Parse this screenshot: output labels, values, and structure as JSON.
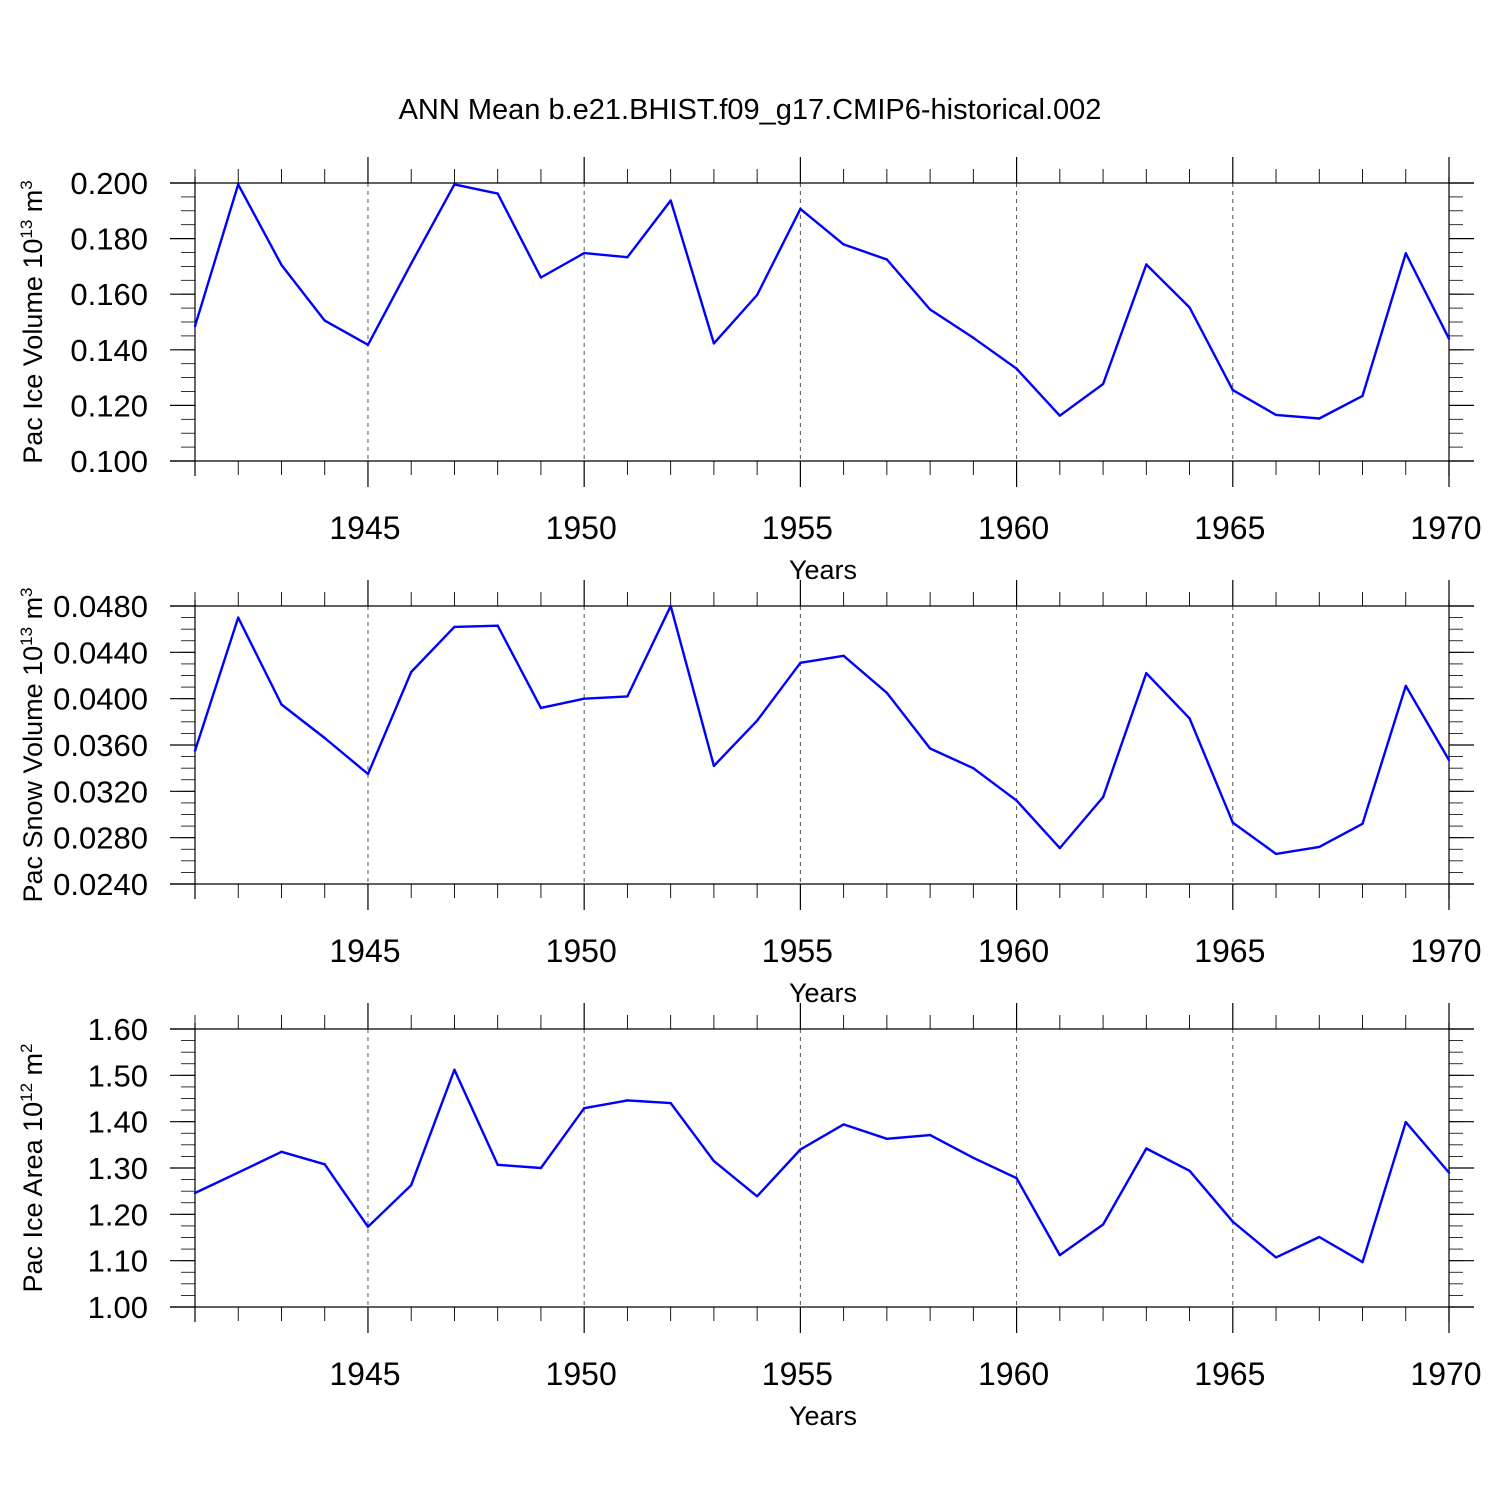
{
  "title": "ANN Mean b.e21.BHIST.f09_g17.CMIP6-historical.002",
  "colors": {
    "line": "#0000ff",
    "axis": "#000000",
    "grid": "#555555"
  },
  "chart_data": [
    {
      "type": "line",
      "ylabel_main": "Pac Ice Volume 10",
      "ylabel_exp": "13",
      "ylabel_unit": " m",
      "ylabel_unit_exp": "3",
      "xlabel": "Years",
      "xlim": [
        1941,
        1970
      ],
      "ylim": [
        0.1,
        0.2
      ],
      "yticks": [
        0.1,
        0.12,
        0.14,
        0.16,
        0.18,
        0.2
      ],
      "ytick_labels": [
        "0.100",
        "0.120",
        "0.140",
        "0.160",
        "0.180",
        "0.200"
      ],
      "yminor_step": 0.005,
      "xticks": [
        1945,
        1950,
        1955,
        1960,
        1965,
        1970
      ],
      "xtick_labels": [
        "1945",
        "1950",
        "1955",
        "1960",
        "1965",
        "1970"
      ],
      "x": [
        1941,
        1942,
        1943,
        1944,
        1945,
        1946,
        1947,
        1948,
        1949,
        1950,
        1951,
        1952,
        1953,
        1954,
        1955,
        1956,
        1957,
        1958,
        1959,
        1960,
        1961,
        1962,
        1963,
        1964,
        1965,
        1966,
        1967,
        1968,
        1969,
        1970
      ],
      "values": [
        0.1485,
        0.1995,
        0.1705,
        0.1505,
        0.1418,
        0.171,
        0.1995,
        0.1962,
        0.166,
        0.1748,
        0.1733,
        0.1937,
        0.1423,
        0.1597,
        0.1907,
        0.1779,
        0.1725,
        0.1545,
        0.1443,
        0.1332,
        0.1163,
        0.1277,
        0.1707,
        0.1552,
        0.1255,
        0.1166,
        0.1153,
        0.1234,
        0.1747,
        0.144
      ]
    },
    {
      "type": "line",
      "ylabel_main": "Pac Snow Volume 10",
      "ylabel_exp": "13",
      "ylabel_unit": " m",
      "ylabel_unit_exp": "3",
      "xlabel": "Years",
      "xlim": [
        1941,
        1970
      ],
      "ylim": [
        0.024,
        0.048
      ],
      "yticks": [
        0.024,
        0.028,
        0.032,
        0.036,
        0.04,
        0.044,
        0.048
      ],
      "ytick_labels": [
        "0.0240",
        "0.0280",
        "0.0320",
        "0.0360",
        "0.0400",
        "0.0440",
        "0.0480"
      ],
      "yminor_step": 0.001,
      "xticks": [
        1945,
        1950,
        1955,
        1960,
        1965,
        1970
      ],
      "xtick_labels": [
        "1945",
        "1950",
        "1955",
        "1960",
        "1965",
        "1970"
      ],
      "x": [
        1941,
        1942,
        1943,
        1944,
        1945,
        1946,
        1947,
        1948,
        1949,
        1950,
        1951,
        1952,
        1953,
        1954,
        1955,
        1956,
        1957,
        1958,
        1959,
        1960,
        1961,
        1962,
        1963,
        1964,
        1965,
        1966,
        1967,
        1968,
        1969,
        1970
      ],
      "values": [
        0.0355,
        0.047,
        0.0395,
        0.0366,
        0.0335,
        0.0423,
        0.0462,
        0.0463,
        0.0392,
        0.04,
        0.0402,
        0.048,
        0.0342,
        0.0381,
        0.0431,
        0.0437,
        0.0405,
        0.0357,
        0.034,
        0.0312,
        0.0271,
        0.0315,
        0.0422,
        0.0383,
        0.0293,
        0.0266,
        0.0272,
        0.0292,
        0.0411,
        0.0347
      ]
    },
    {
      "type": "line",
      "ylabel_main": "Pac Ice Area 10",
      "ylabel_exp": "12",
      "ylabel_unit": " m",
      "ylabel_unit_exp": "2",
      "xlabel": "Years",
      "xlim": [
        1941,
        1970
      ],
      "ylim": [
        1.0,
        1.6
      ],
      "yticks": [
        1.0,
        1.1,
        1.2,
        1.3,
        1.4,
        1.5,
        1.6
      ],
      "ytick_labels": [
        "1.00",
        "1.10",
        "1.20",
        "1.30",
        "1.40",
        "1.50",
        "1.60"
      ],
      "yminor_step": 0.025,
      "xticks": [
        1945,
        1950,
        1955,
        1960,
        1965,
        1970
      ],
      "xtick_labels": [
        "1945",
        "1950",
        "1955",
        "1960",
        "1965",
        "1970"
      ],
      "x": [
        1941,
        1942,
        1943,
        1944,
        1945,
        1946,
        1947,
        1948,
        1949,
        1950,
        1951,
        1952,
        1953,
        1954,
        1955,
        1956,
        1957,
        1958,
        1959,
        1960,
        1961,
        1962,
        1963,
        1964,
        1965,
        1966,
        1967,
        1968,
        1969,
        1970
      ],
      "values": [
        1.246,
        1.29,
        1.335,
        1.308,
        1.173,
        1.263,
        1.512,
        1.307,
        1.3,
        1.429,
        1.446,
        1.44,
        1.315,
        1.239,
        1.34,
        1.394,
        1.363,
        1.371,
        1.322,
        1.278,
        1.112,
        1.178,
        1.342,
        1.294,
        1.184,
        1.107,
        1.151,
        1.097,
        1.399,
        1.29
      ]
    }
  ]
}
